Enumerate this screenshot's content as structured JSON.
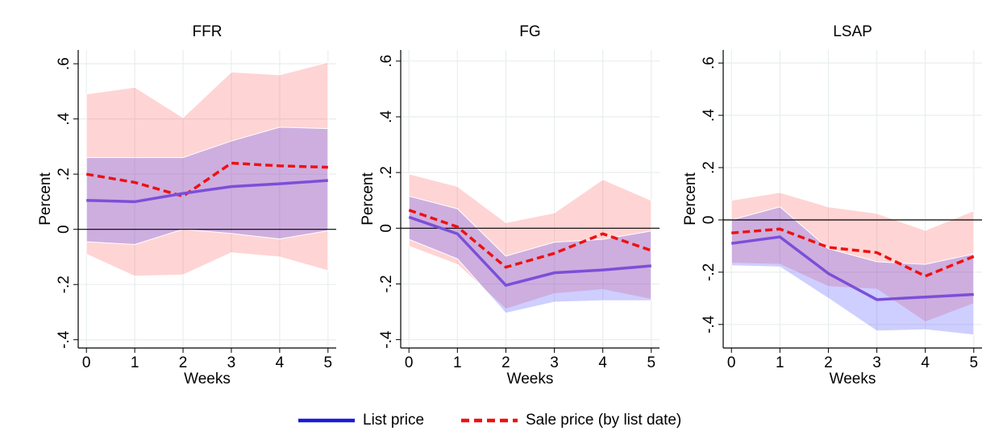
{
  "chart_data": [
    {
      "type": "line",
      "title": "FFR",
      "xlabel": "Weeks",
      "ylabel": "Percent",
      "x": [
        0,
        1,
        2,
        3,
        4,
        5
      ],
      "xlim": [
        -0.17,
        5.17
      ],
      "xticks": [
        0,
        1,
        2,
        3,
        4,
        5
      ],
      "ylim": [
        -0.43,
        0.65
      ],
      "yticks": [
        {
          "value": -0.4,
          "label": "-.4"
        },
        {
          "value": -0.2,
          "label": "-.2"
        },
        0,
        {
          "value": 0.2,
          "label": ".2"
        },
        {
          "value": 0.4,
          "label": ".4"
        },
        {
          "value": 0.6,
          "label": ".6"
        }
      ],
      "grid": true,
      "zero_line": true,
      "series": [
        {
          "name": "List price",
          "color": "#7b4fd8",
          "dash": false,
          "band_color": "#3c3cff",
          "values": [
            0.105,
            0.1,
            0.13,
            0.155,
            0.165,
            0.177
          ],
          "upper": [
            0.26,
            0.26,
            0.26,
            0.32,
            0.37,
            0.365
          ],
          "lower": [
            -0.045,
            -0.055,
            0.0,
            -0.015,
            -0.035,
            -0.005
          ]
        },
        {
          "name": "Sale price (by list date)",
          "color": "#ee1111",
          "dash": true,
          "band_color": "#ff5555",
          "values": [
            0.2,
            0.17,
            0.12,
            0.24,
            0.23,
            0.225
          ],
          "upper": [
            0.49,
            0.515,
            0.405,
            0.57,
            0.56,
            0.605
          ],
          "lower": [
            -0.09,
            -0.17,
            -0.165,
            -0.085,
            -0.1,
            -0.15
          ]
        }
      ]
    },
    {
      "type": "line",
      "title": "FG",
      "xlabel": "Weeks",
      "ylabel": "Percent",
      "x": [
        0,
        1,
        2,
        3,
        4,
        5
      ],
      "xlim": [
        -0.17,
        5.17
      ],
      "xticks": [
        0,
        1,
        2,
        3,
        4,
        5
      ],
      "ylim": [
        -0.43,
        0.64
      ],
      "yticks": [
        {
          "value": -0.4,
          "label": "-.4"
        },
        {
          "value": -0.2,
          "label": "-.2"
        },
        0,
        {
          "value": 0.2,
          "label": ".2"
        },
        {
          "value": 0.4,
          "label": ".4"
        },
        {
          "value": 0.6,
          "label": ".6"
        }
      ],
      "grid": true,
      "zero_line": true,
      "series": [
        {
          "name": "List price",
          "color": "#7b4fd8",
          "dash": false,
          "band_color": "#3c3cff",
          "values": [
            0.04,
            -0.02,
            -0.205,
            -0.16,
            -0.15,
            -0.135
          ],
          "upper": [
            0.115,
            0.07,
            -0.1,
            -0.05,
            -0.04,
            -0.01
          ],
          "lower": [
            -0.04,
            -0.11,
            -0.305,
            -0.265,
            -0.26,
            -0.26
          ]
        },
        {
          "name": "Sale price (by list date)",
          "color": "#ee1111",
          "dash": true,
          "band_color": "#ff5555",
          "values": [
            0.065,
            0.005,
            -0.14,
            -0.09,
            -0.02,
            -0.08
          ],
          "upper": [
            0.195,
            0.15,
            0.02,
            0.055,
            0.175,
            0.1
          ],
          "lower": [
            -0.065,
            -0.13,
            -0.29,
            -0.235,
            -0.22,
            -0.255
          ]
        }
      ]
    },
    {
      "type": "line",
      "title": "LSAP",
      "xlabel": "Weeks",
      "ylabel": "Percent",
      "x": [
        0,
        1,
        2,
        3,
        4,
        5
      ],
      "xlim": [
        -0.17,
        5.17
      ],
      "xticks": [
        0,
        1,
        2,
        3,
        4,
        5
      ],
      "ylim": [
        -0.49,
        0.65
      ],
      "yticks": [
        {
          "value": -0.4,
          "label": "-.4"
        },
        {
          "value": -0.2,
          "label": "-.2"
        },
        0,
        {
          "value": 0.2,
          "label": ".2"
        },
        {
          "value": 0.4,
          "label": ".4"
        },
        {
          "value": 0.6,
          "label": ".6"
        }
      ],
      "grid": true,
      "zero_line": true,
      "series": [
        {
          "name": "List price",
          "color": "#7b4fd8",
          "dash": false,
          "band_color": "#3c3cff",
          "values": [
            -0.09,
            -0.065,
            -0.205,
            -0.305,
            -0.295,
            -0.285
          ],
          "upper": [
            0.0,
            0.05,
            -0.11,
            -0.16,
            -0.17,
            -0.13
          ],
          "lower": [
            -0.175,
            -0.18,
            -0.3,
            -0.425,
            -0.42,
            -0.44
          ]
        },
        {
          "name": "Sale price (by list date)",
          "color": "#ee1111",
          "dash": true,
          "band_color": "#ff5555",
          "values": [
            -0.05,
            -0.035,
            -0.105,
            -0.125,
            -0.215,
            -0.14
          ],
          "upper": [
            0.075,
            0.105,
            0.05,
            0.025,
            -0.04,
            0.035
          ],
          "lower": [
            -0.165,
            -0.17,
            -0.255,
            -0.265,
            -0.39,
            -0.32
          ]
        }
      ]
    }
  ]
}
